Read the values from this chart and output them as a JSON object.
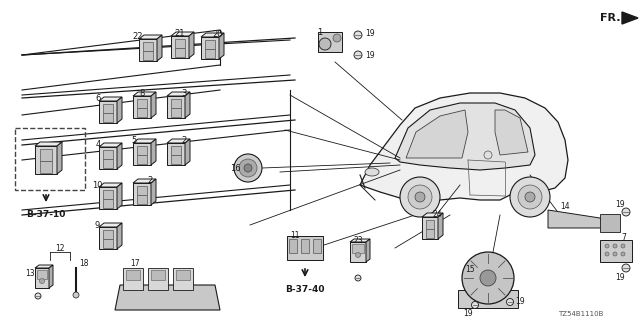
{
  "bg_color": "#ffffff",
  "diagram_code": "TZ54B1110B",
  "fr_label": "FR.",
  "ref1": "B-37-10",
  "ref2": "B-37-40",
  "lc": "#1a1a1a",
  "tc": "#1a1a1a",
  "switch_fc": "#d8d8d8",
  "switch_ec": "#333333",
  "switch_top_fc": "#eeeeee",
  "switch_right_fc": "#aaaaaa"
}
